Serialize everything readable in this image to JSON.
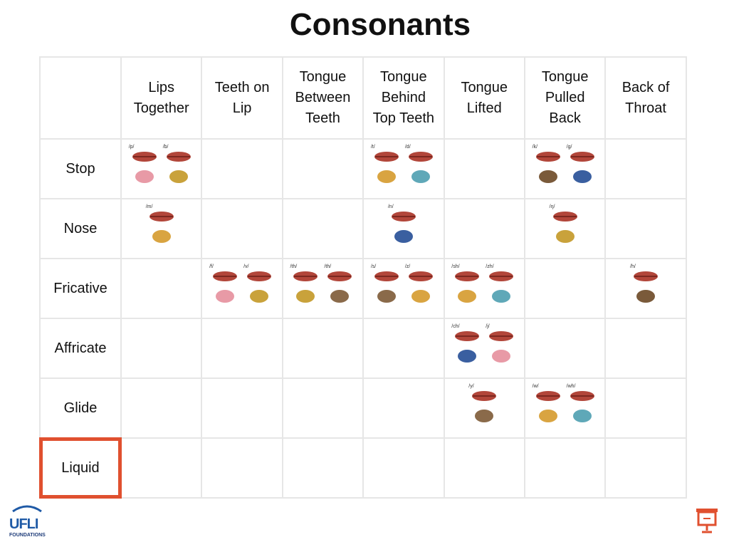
{
  "title": "Consonants",
  "table": {
    "columns": [
      "Lips\nTogether",
      "Teeth on\nLip",
      "Tongue\nBetween\nTeeth",
      "Tongue\nBehind\nTop Teeth",
      "Tongue\nLifted",
      "Tongue\nPulled\nBack",
      "Back of\nThroat"
    ],
    "rows": [
      {
        "label": "Stop",
        "cells": [
          [
            "/p/",
            "/b/"
          ],
          [],
          [],
          [
            "/t/",
            "/d/"
          ],
          [],
          [
            "/k/",
            "/g/"
          ],
          []
        ]
      },
      {
        "label": "Nose",
        "cells": [
          [
            "/m/"
          ],
          [],
          [],
          [
            "/n/"
          ],
          [],
          [
            "/ŋ/"
          ],
          []
        ]
      },
      {
        "label": "Fricative",
        "cells": [
          [],
          [
            "/f/",
            "/v/"
          ],
          [
            "/th/",
            "/th/"
          ],
          [
            "/s/",
            "/z/"
          ],
          [
            "/sh/",
            "/zh/"
          ],
          [],
          [
            "/h/"
          ]
        ]
      },
      {
        "label": "Affricate",
        "cells": [
          [],
          [],
          [],
          [],
          [
            "/ch/",
            "/j/"
          ],
          [],
          []
        ]
      },
      {
        "label": "Glide",
        "cells": [
          [],
          [],
          [],
          [],
          [
            "/y/"
          ],
          [
            "/w/",
            "/wh/"
          ],
          []
        ]
      },
      {
        "label": "Liquid",
        "cells": [
          [],
          [],
          [],
          [],
          [],
          [],
          []
        ]
      }
    ]
  },
  "logo": {
    "text": "UFLI",
    "subtext": "FOUNDATIONS"
  }
}
